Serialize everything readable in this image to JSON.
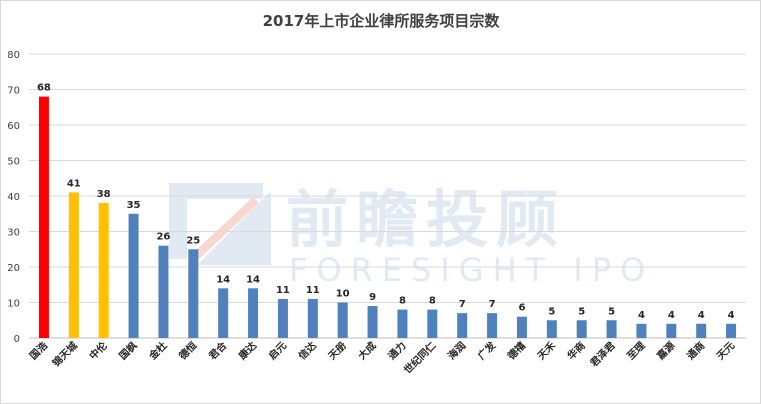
{
  "chart_data": {
    "type": "bar",
    "title": "2017年上市企业律所服务项目宗数",
    "xlabel": "",
    "ylabel": "",
    "ylim": [
      0,
      80
    ],
    "yticks": [
      0,
      10,
      20,
      30,
      40,
      50,
      60,
      70,
      80
    ],
    "grid": true,
    "legend": "none",
    "categories": [
      "国浩",
      "锦天城",
      "中伦",
      "国枫",
      "金杜",
      "德恒",
      "君合",
      "康达",
      "启元",
      "信达",
      "天册",
      "大成",
      "通力",
      "世纪同仁",
      "海润",
      "广发",
      "德禧",
      "天禾",
      "华商",
      "君泽君",
      "至理",
      "嘉源",
      "通商",
      "天元"
    ],
    "values": [
      68,
      41,
      38,
      35,
      26,
      25,
      14,
      14,
      11,
      11,
      10,
      9,
      8,
      8,
      7,
      7,
      6,
      5,
      5,
      5,
      4,
      4,
      4,
      4
    ],
    "bar_colors": [
      "#ff0000",
      "#ffc000",
      "#ffc000",
      "#4f81bd",
      "#4f81bd",
      "#4f81bd",
      "#4f81bd",
      "#4f81bd",
      "#4f81bd",
      "#4f81bd",
      "#4f81bd",
      "#4f81bd",
      "#4f81bd",
      "#4f81bd",
      "#4f81bd",
      "#4f81bd",
      "#4f81bd",
      "#4f81bd",
      "#4f81bd",
      "#4f81bd",
      "#4f81bd",
      "#4f81bd",
      "#4f81bd",
      "#4f81bd"
    ]
  },
  "watermark": {
    "cn": "前瞻投顾",
    "en": "FORESIGHT IPO"
  },
  "colors": {
    "grid": "#d9d9d9",
    "axis": "#bfbfbf",
    "watermark": "#c9d9ea"
  }
}
